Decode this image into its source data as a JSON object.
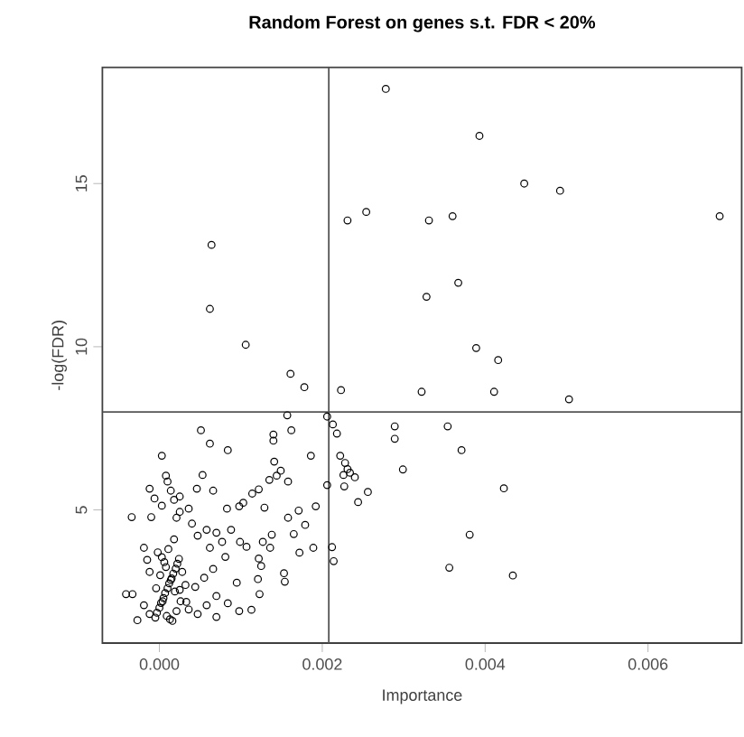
{
  "chart_data": {
    "type": "scatter",
    "title": "Random Forest on genes s.t. FDR < 20%",
    "xlabel": "Importance",
    "ylabel": "-log(FDR)",
    "xlim": [
      -0.0007,
      0.00715
    ],
    "ylim": [
      0.92,
      18.56
    ],
    "xticks": [
      {
        "value": 0,
        "label": "0.000"
      },
      {
        "value": 0.002,
        "label": "0.002"
      },
      {
        "value": 0.004,
        "label": "0.004"
      },
      {
        "value": 0.006,
        "label": "0.006"
      }
    ],
    "yticks": [
      5,
      10,
      15
    ],
    "marker": "circle",
    "color": "#000000",
    "ref_lines": [
      {
        "axis": "x",
        "value": 0.00208,
        "color": "#555555"
      },
      {
        "axis": "y",
        "value": 8,
        "color": "#555555"
      }
    ],
    "x": [
      0.00278,
      0.00393,
      0.00448,
      0.00492,
      0.0036,
      0.00331,
      0.00231,
      0.00254,
      0.00688,
      0.00064,
      0.00062,
      0.00367,
      0.00328,
      0.00106,
      0.00389,
      0.00416,
      0.00161,
      0.00178,
      0.00223,
      0.00322,
      0.00411,
      0.00503,
      0.00206,
      0.00213,
      0.00218,
      0.00289,
      0.00289,
      0.00354,
      0.00371,
      0.00222,
      0.00228,
      0.00231,
      0.00234,
      0.00299,
      0.00226,
      0.0024,
      0.00206,
      0.00227,
      0.00256,
      0.00423,
      0.00244,
      0.00381,
      0.00212,
      0.00214,
      0.00356,
      0.00434,
      0.00157,
      0.00162,
      0.0014,
      0.0014,
      0.00051,
      0.00062,
      0.00084,
      3e-05,
      0.00186,
      0.00141,
      0.00149,
      0.00144,
      0.00135,
      0.00158,
      8e-05,
      0.00053,
      -0.00012,
      -6e-05,
      0.00046,
      0.00066,
      0.00122,
      0.00114,
      0.00103,
      0.00192,
      0.00129,
      0.00083,
      0.00098,
      0.00158,
      0.00171,
      -0.00034,
      -0.0001,
      0.00179,
      0.00165,
      0.00138,
      0.00127,
      0.00172,
      0.00189,
      0.00107,
      0.00136,
      0.00122,
      0.00125,
      0.00153,
      0.00154,
      0.00121,
      0.00123,
      0.00095,
      0.00084,
      0.00113,
      0.00098,
      0.0007,
      0.00025,
      0.00036,
      0.00018,
      0.00021,
      0.0004,
      0.00058,
      0.0007,
      0.00047,
      0.00077,
      0.00062,
      0.00088,
      0.00099,
      0.00081,
      0.00066,
      0.00055,
      0.00044,
      0.0007,
      0.00058,
      0.00047,
      0.00033,
      0.00025,
      -0.00019,
      -0.00015,
      -0.00012,
      -0.00041,
      -0.00033,
      -0.00027,
      -0.00019,
      -0.00012,
      0.0001,
      0.00014,
      0.00025,
      3e-05,
      -5e-05,
      0.0,
      5e-05,
      0.0001,
      0.00015,
      0.0002,
      0.00024,
      -3e-05,
      2e-05,
      7e-05,
      0.00012,
      0.00017,
      0.00022,
      -4e-05,
      1e-05,
      6e-05,
      0.00011,
      0.00016,
      0.00021,
      0.00026,
      -2e-05,
      4e-05,
      9e-05,
      0.00014,
      0.00019,
      3e-05,
      8e-05,
      0.00013,
      0.00018,
      0.00028,
      0.00032,
      0.00036
    ],
    "values": [
      17.9,
      16.46,
      15.0,
      14.78,
      14.0,
      13.87,
      13.87,
      14.13,
      14.0,
      13.12,
      11.16,
      11.96,
      11.53,
      10.06,
      9.96,
      9.59,
      9.17,
      8.76,
      8.67,
      8.62,
      8.62,
      8.39,
      7.86,
      7.62,
      7.34,
      7.56,
      7.18,
      7.56,
      6.83,
      6.66,
      6.44,
      6.25,
      6.14,
      6.24,
      6.07,
      6.0,
      5.76,
      5.72,
      5.55,
      5.66,
      5.24,
      4.24,
      3.86,
      3.43,
      3.23,
      2.99,
      7.9,
      7.44,
      7.31,
      7.12,
      7.44,
      7.03,
      6.83,
      6.66,
      6.66,
      6.48,
      6.2,
      6.05,
      5.92,
      5.87,
      6.05,
      6.07,
      5.65,
      5.35,
      5.65,
      5.59,
      5.63,
      5.5,
      5.22,
      5.11,
      5.07,
      5.04,
      5.11,
      4.76,
      4.98,
      4.78,
      4.78,
      4.54,
      4.26,
      4.24,
      4.02,
      3.69,
      3.84,
      3.87,
      3.84,
      3.51,
      3.28,
      3.06,
      2.8,
      2.88,
      2.42,
      2.77,
      2.14,
      1.94,
      1.9,
      1.72,
      4.94,
      5.04,
      5.31,
      4.76,
      4.58,
      4.39,
      4.3,
      4.21,
      4.02,
      3.84,
      4.39,
      4.02,
      3.56,
      3.19,
      2.92,
      2.64,
      2.36,
      2.08,
      1.81,
      2.18,
      2.55,
      3.84,
      3.47,
      3.1,
      2.42,
      2.42,
      1.62,
      2.08,
      1.81,
      5.87,
      5.59,
      5.41,
      5.13,
      1.7,
      2.0,
      2.3,
      2.6,
      2.9,
      3.2,
      3.5,
      1.85,
      2.15,
      2.45,
      2.75,
      3.05,
      3.35,
      2.6,
      3.0,
      3.4,
      3.8,
      1.6,
      1.9,
      2.2,
      3.7,
      2.2,
      1.75,
      2.85,
      2.5,
      3.55,
      3.25,
      1.65,
      4.1,
      3.1,
      2.7,
      1.95
    ]
  }
}
